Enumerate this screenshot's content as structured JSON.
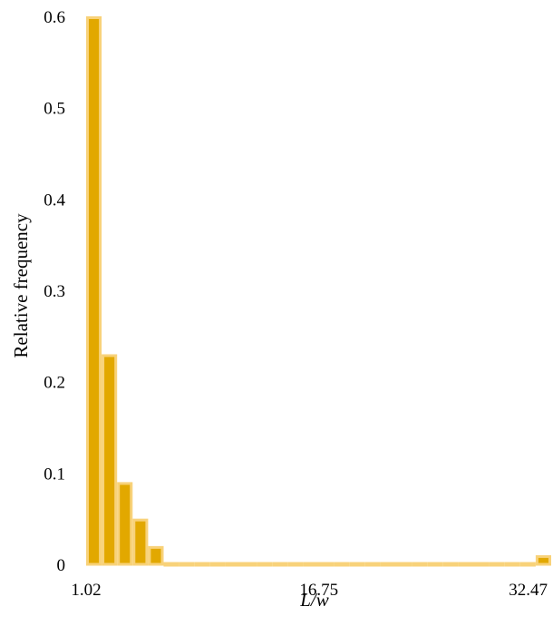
{
  "chart_data": {
    "type": "bar",
    "xlabel": "L/w",
    "ylabel": "Relative frequency",
    "ylim": [
      0,
      0.6
    ],
    "yticks": [
      "0",
      "0.1",
      "0.2",
      "0.3",
      "0.4",
      "0.5",
      "0.6"
    ],
    "xticks": [
      "1.02",
      "16.75",
      "32.47"
    ],
    "bin_start": 1.02,
    "bin_width": 1.048,
    "values": [
      0.6,
      0.23,
      0.09,
      0.05,
      0.02,
      0,
      0,
      0,
      0,
      0,
      0,
      0,
      0,
      0,
      0,
      0,
      0,
      0,
      0,
      0,
      0,
      0,
      0,
      0,
      0,
      0,
      0,
      0,
      0,
      0.01
    ],
    "grid": false,
    "legend": "none",
    "bar_fill_color": "#E2A800",
    "bar_edge_color": "#F8D27A"
  }
}
